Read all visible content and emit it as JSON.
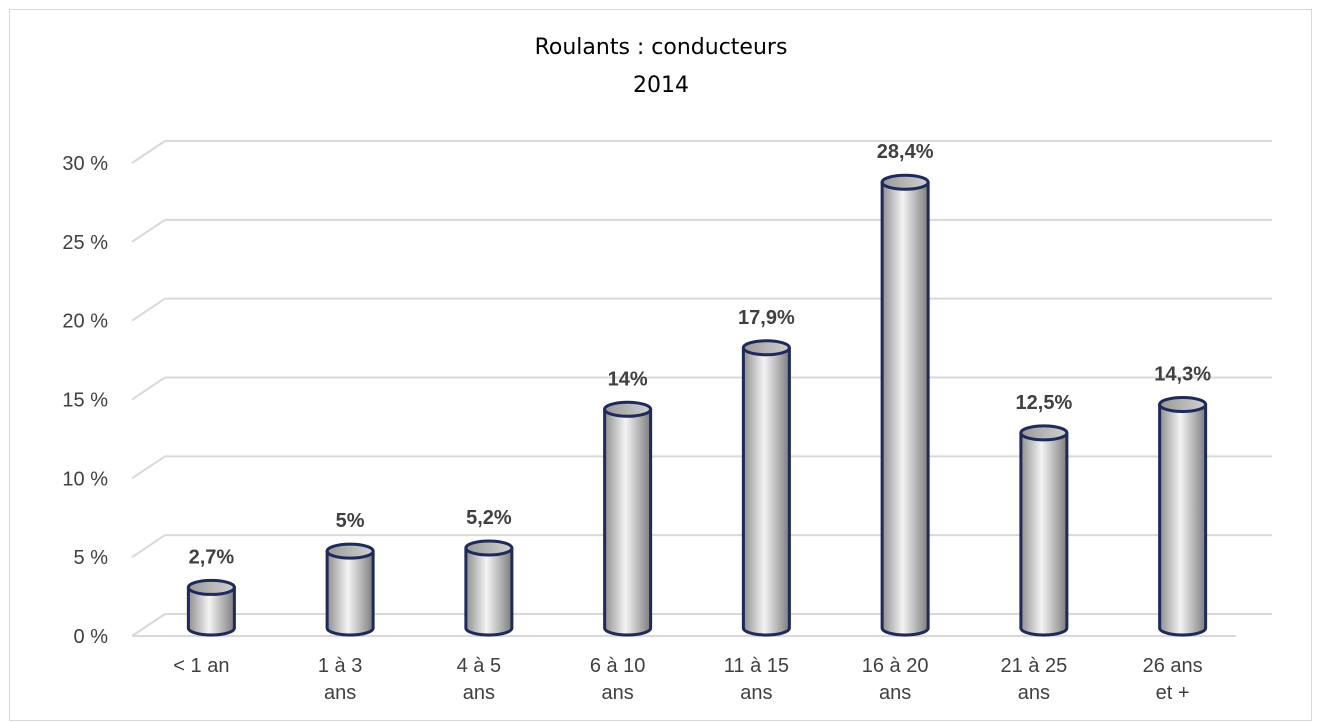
{
  "chart_data": {
    "type": "bar",
    "title": "Roulants : conducteurs",
    "subtitle": "2014",
    "categories": [
      [
        "< 1 an"
      ],
      [
        "1 à 3",
        "ans"
      ],
      [
        "4 à 5",
        "ans"
      ],
      [
        "6 à 10",
        "ans"
      ],
      [
        "11 à 15",
        "ans"
      ],
      [
        "16 à 20",
        "ans"
      ],
      [
        "21 à 25",
        "ans"
      ],
      [
        "26 ans",
        "et +"
      ]
    ],
    "values": [
      2.7,
      5,
      5.2,
      14,
      17.9,
      28.4,
      12.5,
      14.3
    ],
    "data_labels": [
      "2,7%",
      "5%",
      "5,2%",
      "14%",
      "17,9%",
      "28,4%",
      "12,5%",
      "14,3%"
    ],
    "y_ticks": [
      0,
      5,
      10,
      15,
      20,
      25,
      30
    ],
    "y_tick_labels": [
      "0 %",
      "5 %",
      "10 %",
      "15 %",
      "20 %",
      "25 %",
      "30 %"
    ],
    "ylim": [
      0,
      30
    ],
    "grid": true,
    "legend": "none",
    "style": "3d-cylinder",
    "colors": {
      "bar_fill": "#b8b8b8",
      "bar_highlight": "#f4f4f4",
      "bar_outline": "#1f2a5a",
      "grid": "#d9d9d9",
      "label": "#404040"
    }
  }
}
